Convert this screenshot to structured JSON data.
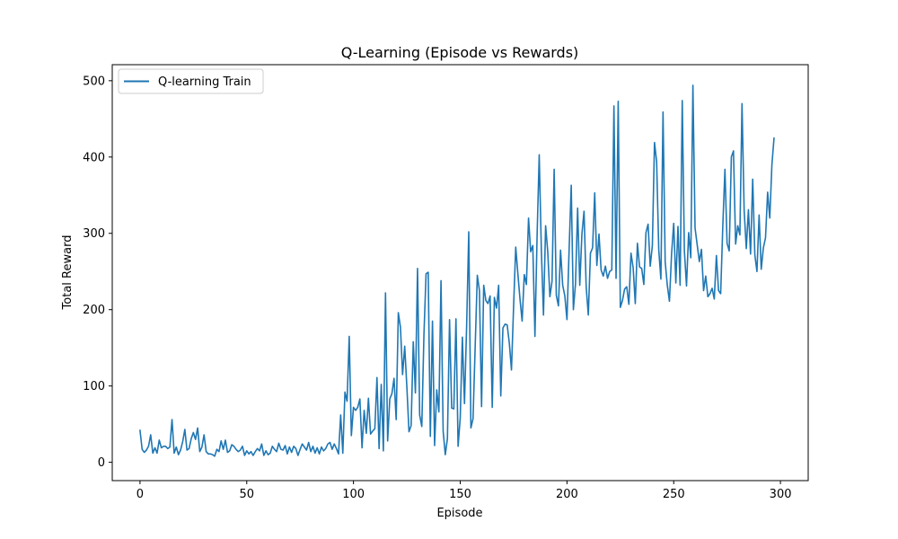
{
  "chart_data": {
    "type": "line",
    "title": "Q-Learning (Episode vs Rewards)",
    "xlabel": "Episode",
    "ylabel": "Total Reward",
    "xlim": [
      -13,
      313
    ],
    "ylim": [
      -24,
      521
    ],
    "xticks": [
      0,
      50,
      100,
      150,
      200,
      250,
      300
    ],
    "yticks": [
      0,
      100,
      200,
      300,
      400,
      500
    ],
    "grid": false,
    "legend_position": "upper-left",
    "series": [
      {
        "name": "Q-learning Train",
        "color": "#1f77b4",
        "values": [
          42,
          17,
          13,
          16,
          21,
          36,
          12,
          19,
          12,
          29,
          19,
          21,
          21,
          18,
          20,
          56,
          12,
          20,
          10,
          16,
          27,
          43,
          16,
          18,
          31,
          39,
          30,
          45,
          14,
          20,
          36,
          14,
          11,
          11,
          10,
          8,
          17,
          14,
          28,
          17,
          29,
          13,
          15,
          23,
          21,
          17,
          14,
          16,
          21,
          9,
          15,
          11,
          14,
          9,
          14,
          18,
          15,
          24,
          9,
          15,
          10,
          12,
          21,
          17,
          14,
          25,
          17,
          16,
          22,
          11,
          20,
          13,
          21,
          18,
          9,
          17,
          24,
          20,
          16,
          26,
          14,
          21,
          12,
          19,
          11,
          20,
          15,
          18,
          24,
          26,
          17,
          24,
          18,
          11,
          62,
          12,
          92,
          80,
          165,
          35,
          72,
          68,
          72,
          83,
          19,
          68,
          38,
          84,
          37,
          41,
          44,
          111,
          18,
          102,
          15,
          222,
          28,
          83,
          90,
          110,
          56,
          196,
          177,
          115,
          152,
          99,
          40,
          48,
          158,
          91,
          254,
          62,
          47,
          167,
          247,
          249,
          34,
          185,
          22,
          95,
          66,
          238,
          41,
          10,
          31,
          187,
          71,
          70,
          188,
          21,
          58,
          164,
          77,
          178,
          302,
          45,
          57,
          151,
          245,
          225,
          73,
          232,
          212,
          208,
          218,
          72,
          216,
          202,
          232,
          87,
          176,
          181,
          180,
          156,
          121,
          204,
          282,
          247,
          214,
          185,
          246,
          233,
          320,
          276,
          284,
          165,
          296,
          403,
          278,
          193,
          310,
          276,
          217,
          237,
          384,
          219,
          205,
          278,
          232,
          218,
          187,
          278,
          363,
          200,
          234,
          333,
          232,
          299,
          329,
          230,
          193,
          274,
          281,
          353,
          258,
          299,
          252,
          244,
          257,
          241,
          250,
          252,
          467,
          241,
          473,
          203,
          212,
          227,
          230,
          207,
          274,
          255,
          208,
          287,
          256,
          254,
          233,
          301,
          312,
          257,
          284,
          419,
          394,
          278,
          240,
          459,
          263,
          232,
          211,
          273,
          313,
          235,
          309,
          232,
          474,
          277,
          231,
          301,
          268,
          494,
          307,
          285,
          263,
          279,
          225,
          244,
          217,
          221,
          228,
          214,
          271,
          225,
          221,
          310,
          384,
          287,
          277,
          400,
          408,
          286,
          310,
          298,
          470,
          330,
          280,
          331,
          273,
          371,
          272,
          250,
          324,
          253,
          281,
          294,
          354,
          320,
          390,
          425
        ]
      }
    ]
  }
}
